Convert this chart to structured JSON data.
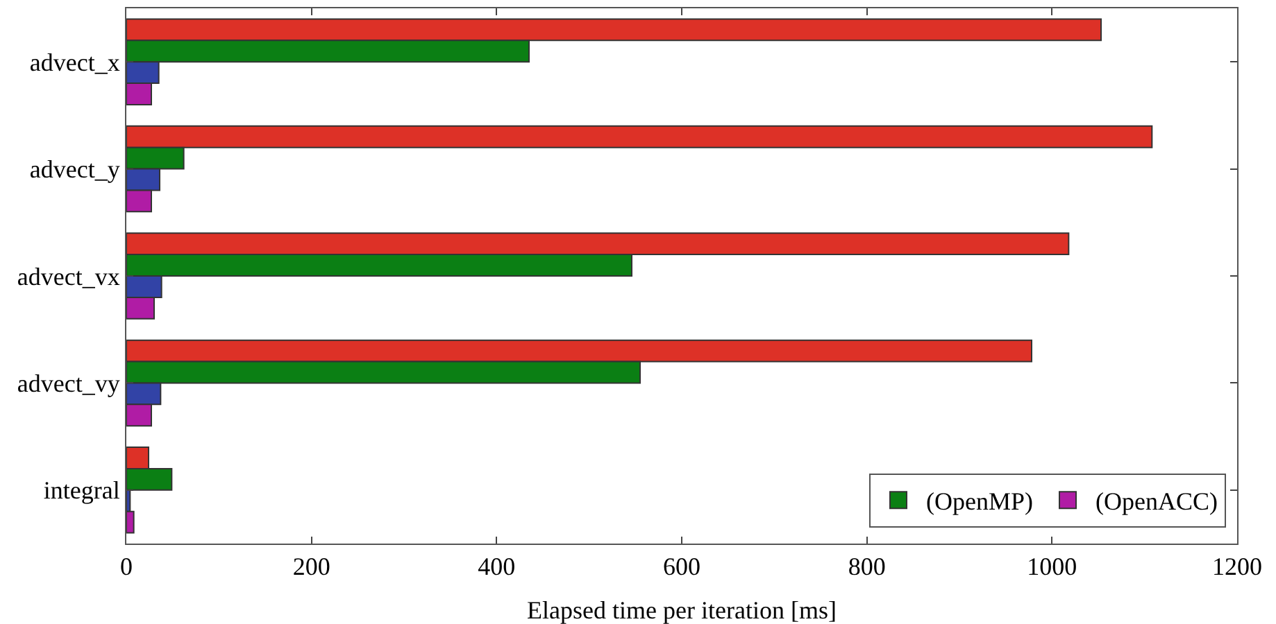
{
  "chart_data": {
    "type": "bar",
    "orientation": "horizontal",
    "xlabel": "Elapsed time per iteration [ms]",
    "categories": [
      "advect_x",
      "advect_y",
      "advect_vx",
      "advect_vy",
      "integral"
    ],
    "series": [
      {
        "color": "#dd3127",
        "values": [
          1053,
          1108,
          1018,
          978,
          24
        ]
      },
      {
        "name": "(OpenMP)",
        "color": "#0b7f14",
        "values": [
          435,
          62,
          546,
          555,
          49
        ]
      },
      {
        "color": "#3243a6",
        "values": [
          35,
          36,
          38,
          37,
          4
        ]
      },
      {
        "name": "(OpenACC)",
        "color": "#b01ca5",
        "values": [
          27,
          27,
          30,
          27,
          8
        ]
      }
    ],
    "xlim": [
      0,
      1200
    ],
    "xticks": [
      0,
      200,
      400,
      600,
      800,
      1000,
      1200
    ],
    "grid": false,
    "legend": "bottom right"
  }
}
